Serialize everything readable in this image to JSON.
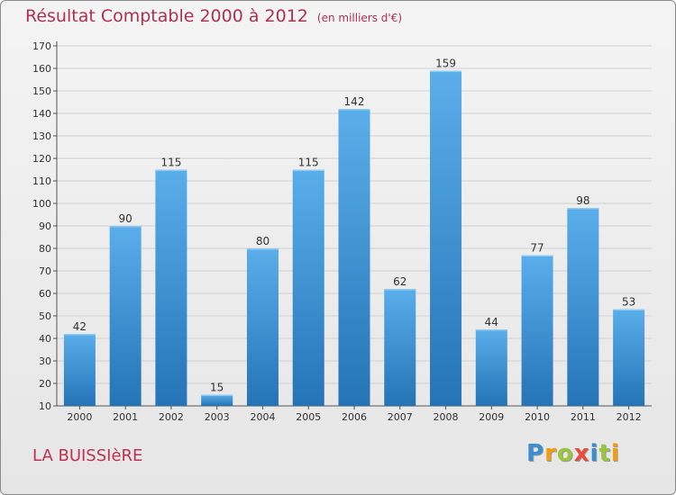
{
  "title": "Résultat Comptable 2000 à 2012",
  "subtitle": "(en milliers d'€)",
  "commune": "LA BUISSIèRE",
  "logo": {
    "text": "Proxiti",
    "letters": [
      "P",
      "r",
      "o",
      "x",
      "i",
      "t",
      "i"
    ],
    "colors": [
      "#3a8fd0",
      "#f39c12",
      "#9bc53d",
      "#e74c3c",
      "#3a8fd0",
      "#9bc53d",
      "#f39c12"
    ]
  },
  "colors": {
    "title": "#b03050",
    "bar_top": "#5aaeea",
    "bar_bottom": "#2474b6",
    "grid": "#d0d0d0"
  },
  "chart_data": {
    "type": "bar",
    "title": "Résultat Comptable 2000 à 2012",
    "xlabel": "",
    "ylabel": "",
    "categories": [
      "2000",
      "2001",
      "2002",
      "2003",
      "2004",
      "2005",
      "2006",
      "2007",
      "2008",
      "2009",
      "2010",
      "2011",
      "2012"
    ],
    "values": [
      42,
      90,
      115,
      15,
      80,
      115,
      142,
      62,
      159,
      44,
      77,
      98,
      53
    ],
    "ylim": [
      10,
      170
    ],
    "yticks": [
      10,
      20,
      30,
      40,
      50,
      60,
      70,
      80,
      90,
      100,
      110,
      120,
      130,
      140,
      150,
      160,
      170
    ],
    "grid": true
  }
}
